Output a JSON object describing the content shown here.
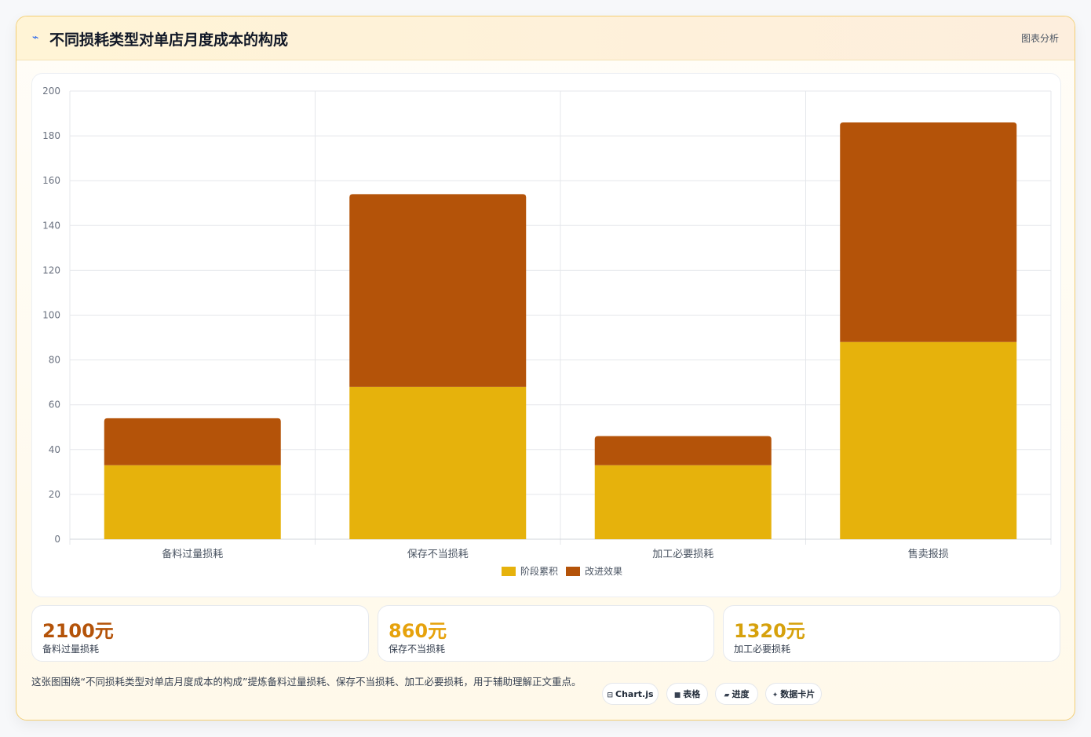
{
  "header": {
    "icon": "chart-line-icon",
    "title": "不同损耗类型对单店月度成本的构成",
    "tag": "图表分析"
  },
  "chart_data": {
    "type": "bar",
    "stacked": true,
    "title": "",
    "xlabel": "",
    "ylabel": "",
    "categories": [
      "备料过量损耗",
      "保存不当损耗",
      "加工必要损耗",
      "售卖报损"
    ],
    "series": [
      {
        "name": "阶段累积",
        "color": "#e6b20c",
        "values": [
          33,
          68,
          33,
          88
        ]
      },
      {
        "name": "改进效果",
        "color": "#b45309",
        "values": [
          21,
          86,
          13,
          98
        ]
      }
    ],
    "ylim": [
      0,
      200
    ],
    "yticks": [
      0,
      20,
      40,
      60,
      80,
      100,
      120,
      140,
      160,
      180,
      200
    ],
    "grid": true,
    "legend": "bottom"
  },
  "kpis": [
    {
      "value": "2100元",
      "label": "备料过量损耗",
      "color": "#b45309"
    },
    {
      "value": "860元",
      "label": "保存不当损耗",
      "color": "#e6a20c"
    },
    {
      "value": "1320元",
      "label": "加工必要损耗",
      "color": "#d6a10c"
    }
  ],
  "footer": {
    "text": "这张图围绕“不同损耗类型对单店月度成本的构成”提炼备料过量损耗、保存不当损耗、加工必要损耗，用于辅助理解正文重点。"
  },
  "chips": [
    {
      "icon": "table-icon",
      "glyph": "⊟",
      "label": "Chart.js"
    },
    {
      "icon": "grid-icon",
      "glyph": "■",
      "label": "表格"
    },
    {
      "icon": "progress-icon",
      "glyph": "▰",
      "label": "进度"
    },
    {
      "icon": "sparkle-icon",
      "glyph": "✦",
      "label": "数据卡片"
    }
  ]
}
